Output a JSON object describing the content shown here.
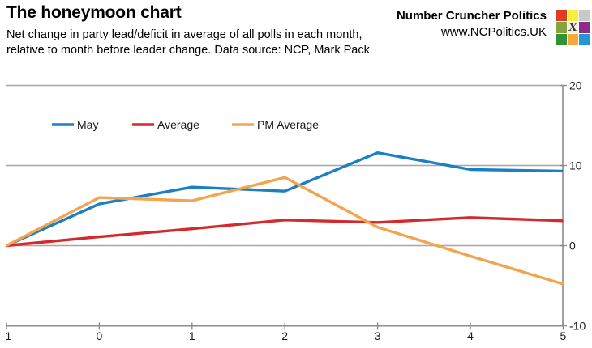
{
  "header": {
    "title": "The honeymoon chart",
    "subtitle_line1": "Net change in party lead/deficit in average of all polls in each month,",
    "subtitle_line2": "relative to month before leader change. Data source: NCP, Mark Pack"
  },
  "brand": {
    "name": "Number Cruncher Politics",
    "url": "www.NCPolitics.UK",
    "logo": {
      "center_glyph": "X",
      "cell_colors": [
        "#e23b24",
        "#f5ef3d",
        "#c9c9c9",
        "#85a33e",
        "#f4f0e2",
        "#8e2a8a",
        "#2e9437",
        "#f3a93c",
        "#2496d2"
      ]
    }
  },
  "chart_data": {
    "type": "line",
    "title": "",
    "xlabel": "",
    "ylabel": "",
    "x": [
      -1,
      0,
      1,
      2,
      3,
      4,
      5
    ],
    "xticks": [
      -1,
      0,
      1,
      2,
      3,
      4,
      5
    ],
    "yticks": [
      20,
      10,
      0,
      -10
    ],
    "ylim": [
      -10,
      20
    ],
    "xlim": [
      -1,
      5
    ],
    "grid": "horizontal",
    "y_axis_side": "right",
    "legend_position": "inside-top-left",
    "axis_color": "#8c8c8c",
    "gridline_color": "#a6a6a6",
    "series": [
      {
        "name": "May",
        "color": "#1b7fc4",
        "values": [
          0,
          5.2,
          7.3,
          6.8,
          11.6,
          9.5,
          9.3
        ]
      },
      {
        "name": "Average",
        "color": "#d42a2e",
        "values": [
          0,
          1.1,
          2.1,
          3.2,
          2.9,
          3.5,
          3.1
        ]
      },
      {
        "name": "PM Average",
        "color": "#f2a54e",
        "values": [
          0,
          6.0,
          5.6,
          8.5,
          2.3,
          -1.3,
          -4.8
        ]
      }
    ]
  }
}
